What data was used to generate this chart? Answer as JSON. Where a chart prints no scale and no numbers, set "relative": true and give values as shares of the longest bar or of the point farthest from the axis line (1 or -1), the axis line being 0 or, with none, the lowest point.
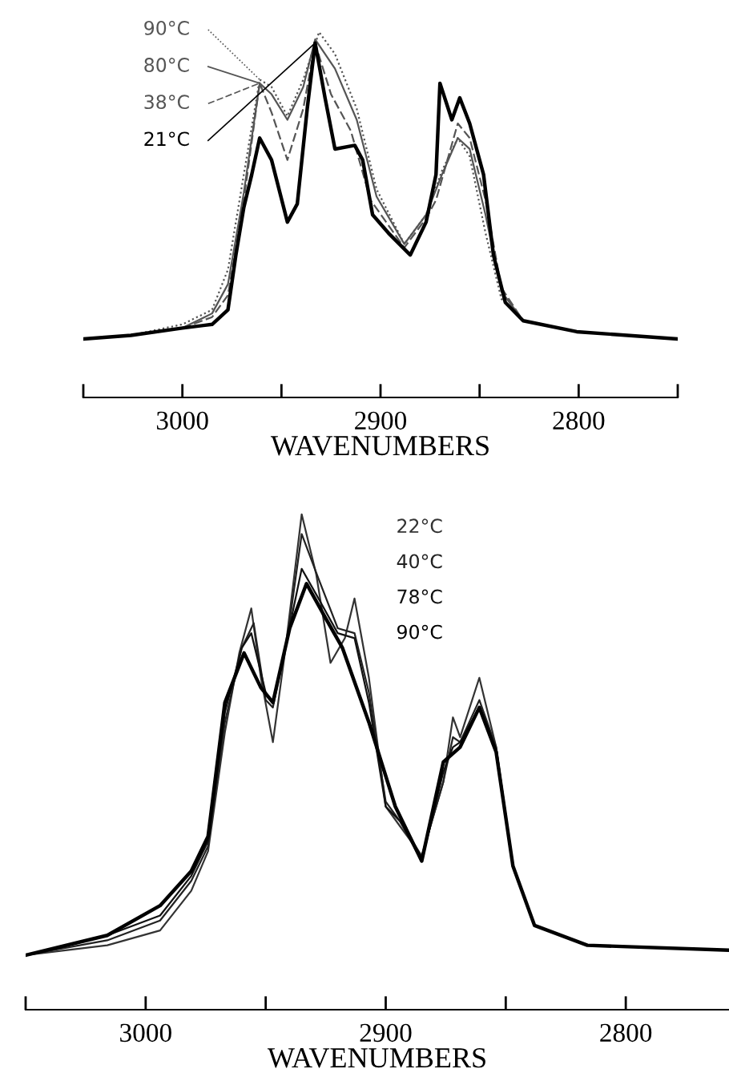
{
  "chart_data": [
    {
      "type": "line",
      "relative": true,
      "xlabel": "WAVENUMBERS",
      "xlim": [
        3050,
        2750
      ],
      "xticks": [
        {
          "value": 3050,
          "label": null
        },
        3000,
        {
          "value": 2950,
          "label": null
        },
        2900,
        {
          "value": 2850,
          "label": null
        },
        2800,
        {
          "value": 2750,
          "label": null
        }
      ],
      "grid": false,
      "legend": "top left",
      "tick_labels": "x",
      "series": [
        {
          "name": "90°C",
          "color": "#555555",
          "line_style": "dotted",
          "x": [
            3050,
            3026,
            3000,
            2985,
            2977,
            2969,
            2961,
            2955,
            2947,
            2939,
            2931,
            2923,
            2912,
            2902,
            2888,
            2877,
            2869,
            2861,
            2855,
            2847,
            2839,
            2828,
            2801,
            2750
          ],
          "values": [
            0.16,
            0.17,
            0.2,
            0.24,
            0.35,
            0.61,
            0.87,
            0.85,
            0.77,
            0.87,
            1.0,
            0.94,
            0.79,
            0.57,
            0.42,
            0.5,
            0.62,
            0.71,
            0.66,
            0.45,
            0.27,
            0.21,
            0.18,
            0.16
          ]
        },
        {
          "name": "80°C",
          "color": "#555555",
          "line_style": "solid",
          "x": [
            3050,
            3026,
            3000,
            2985,
            2977,
            2969,
            2961,
            2955,
            2947,
            2939,
            2933,
            2923,
            2912,
            2902,
            2888,
            2877,
            2869,
            2861,
            2855,
            2847,
            2839,
            2828,
            2801,
            2750
          ],
          "values": [
            0.16,
            0.17,
            0.19,
            0.23,
            0.31,
            0.56,
            0.86,
            0.83,
            0.76,
            0.85,
            0.98,
            0.9,
            0.76,
            0.55,
            0.42,
            0.5,
            0.61,
            0.71,
            0.68,
            0.5,
            0.29,
            0.21,
            0.18,
            0.16
          ]
        },
        {
          "name": "38°C",
          "color": "#555555",
          "line_style": "dashed",
          "x": [
            3050,
            3026,
            3000,
            2985,
            2977,
            2969,
            2961,
            2955,
            2947,
            2939,
            2933,
            2925,
            2915,
            2905,
            2888,
            2877,
            2872,
            2861,
            2855,
            2847,
            2839,
            2828,
            2801,
            2750
          ],
          "values": [
            0.16,
            0.17,
            0.19,
            0.22,
            0.28,
            0.54,
            0.86,
            0.78,
            0.65,
            0.79,
            0.97,
            0.83,
            0.73,
            0.54,
            0.41,
            0.49,
            0.54,
            0.75,
            0.71,
            0.54,
            0.3,
            0.21,
            0.18,
            0.16
          ]
        },
        {
          "name": "21°C",
          "color": "#000000",
          "line_style": "solid",
          "x": [
            3050,
            3026,
            3000,
            2985,
            2977,
            2973,
            2969,
            2965,
            2961,
            2955,
            2947,
            2942,
            2937,
            2933,
            2928,
            2923,
            2913,
            2909,
            2904,
            2896,
            2885,
            2877,
            2872,
            2870,
            2864,
            2860,
            2855,
            2848,
            2843,
            2837,
            2828,
            2801,
            2750
          ],
          "values": [
            0.16,
            0.17,
            0.19,
            0.2,
            0.24,
            0.39,
            0.52,
            0.61,
            0.71,
            0.65,
            0.48,
            0.53,
            0.79,
            0.97,
            0.82,
            0.68,
            0.69,
            0.65,
            0.5,
            0.45,
            0.39,
            0.48,
            0.61,
            0.86,
            0.76,
            0.82,
            0.75,
            0.61,
            0.39,
            0.26,
            0.21,
            0.18,
            0.16
          ]
        }
      ]
    },
    {
      "type": "line",
      "relative": true,
      "xlabel": "WAVENUMBERS",
      "xlim": [
        3050,
        2757
      ],
      "xticks": [
        {
          "value": 3050,
          "label": null
        },
        3000,
        {
          "value": 2950,
          "label": null
        },
        2900,
        {
          "value": 2850,
          "label": null
        },
        2800
      ],
      "grid": false,
      "legend": false,
      "tick_labels": "x",
      "series": [
        {
          "name": "22°C",
          "color": "#333333",
          "line_style": "solid",
          "x": [
            3050,
            3016,
            2994,
            2981,
            2974,
            2967,
            2961,
            2956,
            2952,
            2947,
            2942,
            2935,
            2929,
            2923,
            2917,
            2913,
            2907,
            2900,
            2894,
            2885,
            2876,
            2872,
            2869,
            2861,
            2854,
            2847,
            2838,
            2816,
            2757
          ],
          "values": [
            0.11,
            0.13,
            0.16,
            0.24,
            0.32,
            0.56,
            0.72,
            0.81,
            0.67,
            0.54,
            0.72,
            1.0,
            0.88,
            0.7,
            0.75,
            0.83,
            0.67,
            0.41,
            0.37,
            0.31,
            0.46,
            0.59,
            0.55,
            0.67,
            0.53,
            0.29,
            0.17,
            0.13,
            0.12
          ]
        },
        {
          "name": "40°C",
          "color": "#222222",
          "line_style": "solid",
          "x": [
            3050,
            3016,
            2994,
            2981,
            2974,
            2967,
            2960,
            2955,
            2950,
            2947,
            2941,
            2935,
            2928,
            2920,
            2913,
            2907,
            2900,
            2894,
            2885,
            2876,
            2872,
            2869,
            2861,
            2854,
            2847,
            2838,
            2816,
            2757
          ],
          "values": [
            0.11,
            0.14,
            0.18,
            0.26,
            0.33,
            0.58,
            0.73,
            0.78,
            0.625,
            0.61,
            0.75,
            0.96,
            0.87,
            0.77,
            0.76,
            0.64,
            0.42,
            0.38,
            0.31,
            0.46,
            0.55,
            0.54,
            0.625,
            0.53,
            0.29,
            0.17,
            0.13,
            0.12
          ]
        },
        {
          "name": "78°C",
          "color": "#111111",
          "line_style": "solid",
          "x": [
            3050,
            3016,
            2994,
            2981,
            2974,
            2967,
            2960,
            2956,
            2950,
            2947,
            2941,
            2935,
            2928,
            2920,
            2913,
            2907,
            2900,
            2894,
            2885,
            2876,
            2872,
            2869,
            2861,
            2854,
            2847,
            2838,
            2816,
            2757
          ],
          "values": [
            0.11,
            0.15,
            0.19,
            0.27,
            0.34,
            0.6,
            0.73,
            0.76,
            0.64,
            0.62,
            0.75,
            0.89,
            0.83,
            0.76,
            0.75,
            0.62,
            0.41,
            0.38,
            0.3,
            0.48,
            0.53,
            0.54,
            0.61,
            0.52,
            0.29,
            0.17,
            0.13,
            0.12
          ]
        },
        {
          "name": "90°C",
          "color": "#000000",
          "line_style": "solid",
          "x": [
            3050,
            3016,
            2994,
            2981,
            2974,
            2967,
            2959,
            2952,
            2947,
            2940,
            2933,
            2925,
            2918,
            2907,
            2896,
            2885,
            2876,
            2869,
            2861,
            2854,
            2847,
            2838,
            2816,
            2757
          ],
          "values": [
            0.11,
            0.15,
            0.21,
            0.28,
            0.35,
            0.62,
            0.72,
            0.65,
            0.62,
            0.77,
            0.86,
            0.79,
            0.73,
            0.58,
            0.41,
            0.3,
            0.5,
            0.53,
            0.61,
            0.52,
            0.29,
            0.17,
            0.13,
            0.12
          ]
        }
      ]
    }
  ]
}
